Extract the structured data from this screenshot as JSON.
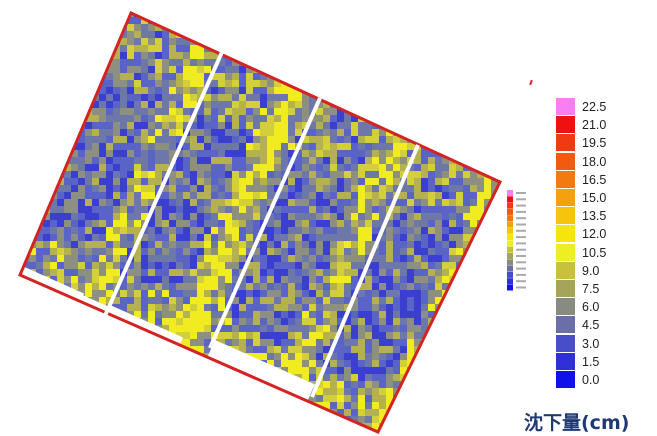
{
  "map": {
    "title": "",
    "field_colors": {
      "deep_blue": "#3b3fd0",
      "mid_blue": "#5a63c6",
      "slate": "#6d78a8",
      "grey_olive": "#8d9080",
      "olive": "#b5b150",
      "yellow_olive": "#d3cf3a",
      "yellow": "#f0ec20"
    },
    "boundary_color": "#d42323",
    "divider_color": "#ffffff"
  },
  "legend": {
    "unit_label": "沈下量(cm)",
    "entries": [
      {
        "label": "22.5",
        "color": "#f77ff2"
      },
      {
        "label": "21.0",
        "color": "#ee1111"
      },
      {
        "label": "19.5",
        "color": "#ef3a12"
      },
      {
        "label": "18.0",
        "color": "#f25a10"
      },
      {
        "label": "16.5",
        "color": "#f27a10"
      },
      {
        "label": "15.0",
        "color": "#f5a10d"
      },
      {
        "label": "13.5",
        "color": "#f5c40d"
      },
      {
        "label": "12.0",
        "color": "#f5e50d"
      },
      {
        "label": "10.5",
        "color": "#eeee22"
      },
      {
        "label": "9.0",
        "color": "#c7c23a"
      },
      {
        "label": "7.5",
        "color": "#a6a45a"
      },
      {
        "label": "6.0",
        "color": "#888c80"
      },
      {
        "label": "4.5",
        "color": "#6a6fa8"
      },
      {
        "label": "3.0",
        "color": "#4a4dc8"
      },
      {
        "label": "1.5",
        "color": "#2f31d6"
      },
      {
        "label": "0.0",
        "color": "#1010e8"
      }
    ]
  }
}
